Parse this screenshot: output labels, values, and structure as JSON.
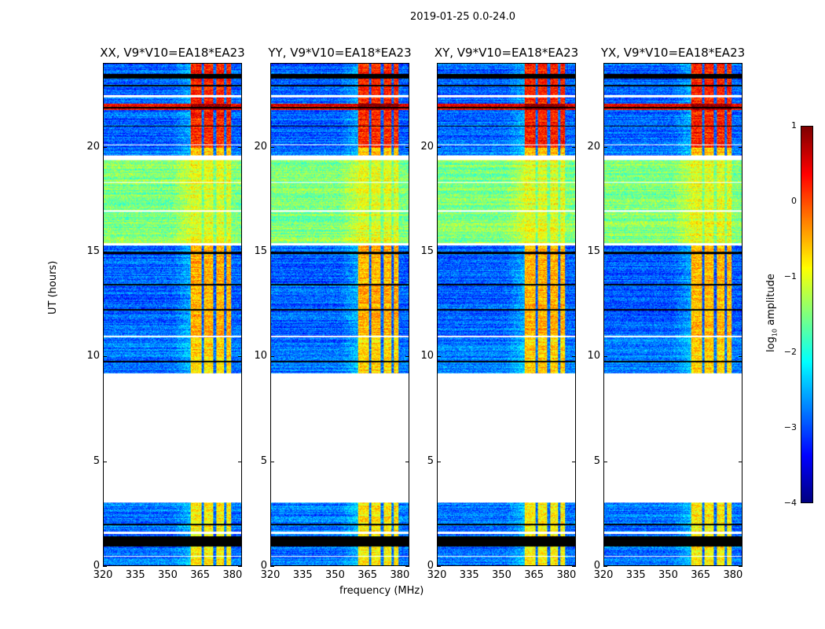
{
  "suptitle": "2019-01-25 0.0-24.0",
  "chart_data": {
    "type": "heatmap",
    "title": "2019-01-25 0.0-24.0",
    "xlabel": "frequency (MHz)",
    "ylabel": "UT (hours)",
    "xlim": [
      320,
      384.4
    ],
    "ylim": [
      0,
      24
    ],
    "xticks": [
      320,
      335,
      350,
      365,
      380
    ],
    "yticks": [
      0,
      5,
      10,
      15,
      20
    ],
    "panels": [
      {
        "title": "XX, V9*V10=EA18*EA23"
      },
      {
        "title": "YY, V9*V10=EA18*EA23"
      },
      {
        "title": "XY, V9*V10=EA18*EA23"
      },
      {
        "title": "YX, V9*V10=EA18*EA23"
      }
    ],
    "rfi_band_mhz": [
      360.7,
      379.6
    ],
    "segments": [
      {
        "start": 0.0,
        "end": 3.0,
        "background_log_amp": -2.8,
        "band_log_amp": -0.8
      },
      {
        "start": 9.2,
        "end": 11.0,
        "background_log_amp": -2.8,
        "band_log_amp": -0.7
      },
      {
        "start": 11.0,
        "end": 15.3,
        "background_log_amp": -2.9,
        "band_log_amp": -0.5
      },
      {
        "start": 15.4,
        "end": 19.4,
        "background_log_amp": -1.5,
        "band_log_amp": -1.0
      },
      {
        "start": 19.6,
        "end": 20.0,
        "background_log_amp": -2.8,
        "band_log_amp": -0.6
      },
      {
        "start": 20.0,
        "end": 24.0,
        "background_log_amp": -2.9,
        "band_log_amp": 0.2
      }
    ],
    "flagged_hours_white": [
      [
        3.0,
        9.2
      ],
      [
        19.4,
        19.6
      ],
      [
        1.5,
        1.6
      ],
      [
        0.4,
        0.45
      ],
      [
        10.9,
        11.0
      ],
      [
        15.3,
        15.4
      ],
      [
        20.1,
        20.15
      ],
      [
        16.9,
        17.0
      ],
      [
        18.3,
        18.35
      ],
      [
        22.4,
        22.5
      ]
    ],
    "flagged_hours_black": [
      [
        3.1,
        3.35
      ],
      [
        0.9,
        1.4
      ],
      [
        1.9,
        2.0
      ],
      [
        9.7,
        9.8
      ],
      [
        12.2,
        12.25
      ],
      [
        13.4,
        13.45
      ],
      [
        14.9,
        15.0
      ],
      [
        21.0,
        21.05
      ],
      [
        22.9,
        23.0
      ],
      [
        23.3,
        23.5
      ],
      [
        21.85,
        21.95
      ]
    ],
    "strong_rfi_hours": [
      [
        21.8,
        22.1
      ]
    ],
    "colorbar": {
      "label": "log10 amplitude",
      "label_main": "log",
      "label_sub": "10",
      "label_rest": " amplitude",
      "range": [
        -4,
        1
      ],
      "ticks": [
        "1",
        "0",
        "−1",
        "−2",
        "−3",
        "−4"
      ],
      "colormap": "jet"
    },
    "ytick_labels": [
      "0",
      "5",
      "10",
      "15",
      "20"
    ],
    "xtick_labels": [
      "320",
      "335",
      "350",
      "365",
      "380"
    ]
  }
}
